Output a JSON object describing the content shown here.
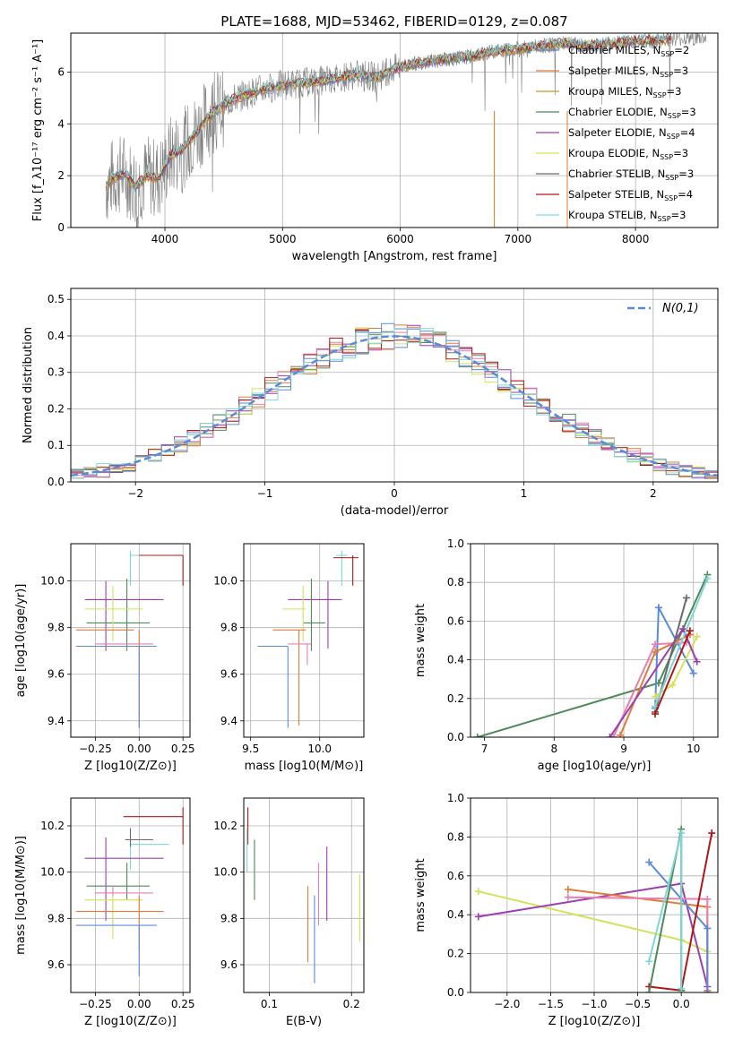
{
  "figure_title": "PLATE=1688, MJD=53462, FIBERID=0129, z=0.087",
  "colors": {
    "chabrier_miles": "#5b8bd8",
    "salpeter_miles": "#e07b39",
    "kroupa_miles": "#cf8f2c",
    "chabrier_elodie": "#4e8a5a",
    "salpeter_elodie": "#9b3fb0",
    "kroupa_elodie": "#d2e35a",
    "chabrier_stelib": "#6a6a6a",
    "salpeter_stelib": "#b01818",
    "kroupa_stelib": "#7fd6d6",
    "pink": "#e77fb0",
    "data_gray": "#7f7f7f"
  },
  "chart_data": [
    {
      "id": "spectrum",
      "type": "line",
      "xlabel": "wavelength [Angstrom, rest frame]",
      "ylabel": "Flux [f_λ10⁻¹⁷ erg cm⁻² s⁻¹ A⁻¹]",
      "xlim": [
        3200,
        8700
      ],
      "ylim": [
        0,
        7.5
      ],
      "xticks": [
        4000,
        5000,
        6000,
        7000,
        8000
      ],
      "yticks": [
        0,
        2,
        4,
        6
      ],
      "legend": [
        "Chabrier MILES, N_SSP=2",
        "Salpeter MILES, N_SSP=3",
        "Kroupa MILES, N_SSP=3",
        "Chabrier ELODIE, N_SSP=3",
        "Salpeter ELODIE, N_SSP=4",
        "Kroupa ELODIE, N_SSP=3",
        "Chabrier STELIB, N_SSP=3",
        "Salpeter STELIB, N_SSP=4",
        "Kroupa STELIB, N_SSP=3"
      ],
      "legend_keys": [
        "chabrier_miles",
        "salpeter_miles",
        "kroupa_miles",
        "chabrier_elodie",
        "salpeter_elodie",
        "kroupa_elodie",
        "chabrier_stelib",
        "salpeter_stelib",
        "kroupa_stelib"
      ],
      "legend_position": "right",
      "model_continuum": [
        [
          3500,
          1.6
        ],
        [
          3550,
          1.9
        ],
        [
          3650,
          2.1
        ],
        [
          3750,
          1.6
        ],
        [
          3850,
          2.0
        ],
        [
          3950,
          1.9
        ],
        [
          4050,
          2.8
        ],
        [
          4150,
          3.0
        ],
        [
          4250,
          3.6
        ],
        [
          4400,
          4.4
        ],
        [
          4600,
          5.0
        ],
        [
          4800,
          5.3
        ],
        [
          5000,
          5.5
        ],
        [
          5200,
          5.6
        ],
        [
          5400,
          5.7
        ],
        [
          5600,
          5.9
        ],
        [
          5800,
          5.8
        ],
        [
          6000,
          6.2
        ],
        [
          6200,
          6.4
        ],
        [
          6400,
          6.5
        ],
        [
          6600,
          6.6
        ],
        [
          6800,
          6.8
        ],
        [
          7000,
          6.9
        ],
        [
          7200,
          7.0
        ],
        [
          7400,
          7.1
        ],
        [
          7600,
          7.0
        ],
        [
          7800,
          7.1
        ],
        [
          8000,
          7.2
        ],
        [
          8200,
          7.2
        ],
        [
          8300,
          7.3
        ]
      ]
    },
    {
      "id": "residuals",
      "type": "step-histogram",
      "xlabel": "(data-model)/error",
      "ylabel": "Normed distribution",
      "xlim": [
        -2.5,
        2.5
      ],
      "ylim": [
        0,
        0.53
      ],
      "xticks": [
        -2,
        -1,
        0,
        1,
        2
      ],
      "yticks": [
        0.0,
        0.1,
        0.2,
        0.3,
        0.4,
        0.5
      ],
      "gaussian_label": "N(0,1)",
      "gaussian_curve": [
        [
          -2.5,
          0.018
        ],
        [
          -2.0,
          0.054
        ],
        [
          -1.5,
          0.13
        ],
        [
          -1.0,
          0.242
        ],
        [
          -0.5,
          0.352
        ],
        [
          0.0,
          0.399
        ],
        [
          0.5,
          0.352
        ],
        [
          1.0,
          0.242
        ],
        [
          1.5,
          0.13
        ],
        [
          2.0,
          0.054
        ],
        [
          2.5,
          0.018
        ]
      ],
      "legend_position": "upper right"
    },
    {
      "id": "z_age",
      "type": "errorbar",
      "xlabel": "Z [log10(Z/Z⊙)]",
      "ylabel": "age  [log10(age/yr)]",
      "xlim": [
        -0.39,
        0.29
      ],
      "ylim": [
        9.33,
        10.16
      ],
      "xticks": [
        -0.25,
        0.0,
        0.25
      ],
      "yticks": [
        9.4,
        9.6,
        9.8,
        10.0
      ],
      "points": [
        {
          "k": "kroupa_stelib",
          "x": -0.05,
          "y": 10.11,
          "xl": -0.05,
          "xh": 0.22,
          "yl": 9.98,
          "yh": 10.13
        },
        {
          "k": "salpeter_stelib",
          "x": 0.25,
          "y": 10.11,
          "xl": 0.0,
          "xh": 0.25,
          "yl": 9.98,
          "yh": 10.11
        },
        {
          "k": "salpeter_elodie",
          "x": -0.19,
          "y": 9.92,
          "xl": -0.31,
          "xh": 0.14,
          "yl": 9.7,
          "yh": 10.0
        },
        {
          "k": "chabrier_elodie",
          "x": -0.07,
          "y": 9.82,
          "xl": -0.3,
          "xh": 0.06,
          "yl": 9.7,
          "yh": 10.01
        },
        {
          "k": "kroupa_elodie",
          "x": -0.15,
          "y": 9.88,
          "xl": -0.31,
          "xh": 0.02,
          "yl": 9.74,
          "yh": 9.98
        },
        {
          "k": "salpeter_miles",
          "x": 0.0,
          "y": 9.79,
          "xl": -0.36,
          "xh": -0.03,
          "yl": 9.37,
          "yh": 9.79
        },
        {
          "k": "pink",
          "x": -0.02,
          "y": 9.73,
          "xl": -0.25,
          "xh": 0.08,
          "yl": 9.73,
          "yh": 9.73
        },
        {
          "k": "chabrier_miles",
          "x": 0.0,
          "y": 9.72,
          "xl": -0.36,
          "xh": 0.1,
          "yl": 9.37,
          "yh": 9.72
        }
      ]
    },
    {
      "id": "mass_age",
      "type": "errorbar",
      "xlabel": "mass [log10(M/M⊙)]",
      "ylabel": "",
      "xlim": [
        9.45,
        10.32
      ],
      "ylim": [
        9.33,
        10.16
      ],
      "xticks": [
        9.5,
        10.0
      ],
      "yticks": [
        9.4,
        9.6,
        9.8,
        10.0
      ],
      "points": [
        {
          "k": "kroupa_stelib",
          "x": 10.16,
          "y": 10.11,
          "xl": 10.12,
          "xh": 10.2,
          "yl": 9.98,
          "yh": 10.13
        },
        {
          "k": "salpeter_stelib",
          "x": 10.24,
          "y": 10.1,
          "xl": 10.1,
          "xh": 10.28,
          "yl": 9.98,
          "yh": 10.11
        },
        {
          "k": "salpeter_elodie",
          "x": 10.06,
          "y": 9.92,
          "xl": 9.77,
          "xh": 10.16,
          "yl": 9.71,
          "yh": 10.0
        },
        {
          "k": "chabrier_elodie",
          "x": 9.94,
          "y": 9.82,
          "xl": 9.88,
          "xh": 10.04,
          "yl": 9.7,
          "yh": 10.01
        },
        {
          "k": "kroupa_elodie",
          "x": 9.88,
          "y": 9.88,
          "xl": 9.73,
          "xh": 9.9,
          "yl": 9.74,
          "yh": 9.98
        },
        {
          "k": "salpeter_miles",
          "x": 9.85,
          "y": 9.79,
          "xl": 9.66,
          "xh": 9.9,
          "yl": 9.38,
          "yh": 9.79
        },
        {
          "k": "pink",
          "x": 9.91,
          "y": 9.73,
          "xl": 9.77,
          "xh": 9.94,
          "yl": 9.64,
          "yh": 9.73
        },
        {
          "k": "chabrier_miles",
          "x": 9.77,
          "y": 9.72,
          "xl": 9.55,
          "xh": 9.77,
          "yl": 9.37,
          "yh": 9.72
        }
      ]
    },
    {
      "id": "age_weight",
      "type": "line",
      "xlabel": "age  [log10(age/yr)]",
      "ylabel": "mass weight",
      "xlim": [
        6.8,
        10.35
      ],
      "ylim": [
        0,
        1
      ],
      "xticks": [
        7,
        8,
        9,
        10
      ],
      "yticks": [
        0.0,
        0.2,
        0.4,
        0.6,
        0.8,
        1.0
      ],
      "series": [
        {
          "k": "chabrier_elodie",
          "x": [
            6.9,
            9.5,
            10.2
          ],
          "y": [
            0.0,
            0.28,
            0.84
          ]
        },
        {
          "k": "chabrier_miles",
          "x": [
            9.45,
            9.5,
            10.0
          ],
          "y": [
            0.15,
            0.67,
            0.33
          ]
        },
        {
          "k": "salpeter_miles",
          "x": [
            8.95,
            9.45,
            9.95
          ],
          "y": [
            0.01,
            0.44,
            0.53
          ]
        },
        {
          "k": "pink",
          "x": [
            8.85,
            9.45,
            9.9
          ],
          "y": [
            0.0,
            0.48,
            0.49
          ]
        },
        {
          "k": "kroupa_elodie",
          "x": [
            9.45,
            9.7,
            10.05
          ],
          "y": [
            0.21,
            0.27,
            0.52
          ]
        },
        {
          "k": "salpeter_elodie",
          "x": [
            8.8,
            9.85,
            10.05
          ],
          "y": [
            0.0,
            0.56,
            0.39
          ]
        },
        {
          "k": "chabrier_stelib",
          "x": [
            9.45,
            9.9
          ],
          "y": [
            0.13,
            0.72
          ]
        },
        {
          "k": "kroupa_stelib",
          "x": [
            9.45,
            10.2
          ],
          "y": [
            0.16,
            0.82
          ]
        },
        {
          "k": "salpeter_stelib",
          "x": [
            9.45,
            9.95
          ],
          "y": [
            0.12,
            0.55
          ]
        }
      ]
    },
    {
      "id": "z_mass",
      "type": "errorbar",
      "xlabel": "Z [log10(Z/Z⊙)]",
      "ylabel": "mass [log10(M/M⊙)]",
      "xlim": [
        -0.39,
        0.29
      ],
      "ylim": [
        9.48,
        10.32
      ],
      "xticks": [
        -0.25,
        0.0,
        0.25
      ],
      "yticks": [
        9.6,
        9.8,
        10.0,
        10.2
      ],
      "points": [
        {
          "k": "salpeter_stelib",
          "x": 0.25,
          "y": 10.24,
          "xl": -0.09,
          "xh": 0.25,
          "yl": 10.12,
          "yh": 10.28
        },
        {
          "k": "kroupa_stelib",
          "x": -0.05,
          "y": 10.12,
          "xl": -0.05,
          "xh": 0.17,
          "yl": 10.01,
          "yh": 10.19
        },
        {
          "k": "chabrier_stelib",
          "x": -0.05,
          "y": 10.14,
          "xl": -0.08,
          "xh": 0.08,
          "yl": 10.11,
          "yh": 10.19
        },
        {
          "k": "salpeter_elodie",
          "x": -0.19,
          "y": 10.06,
          "xl": -0.31,
          "xh": 0.14,
          "yl": 9.79,
          "yh": 10.15
        },
        {
          "k": "chabrier_elodie",
          "x": -0.07,
          "y": 9.94,
          "xl": -0.3,
          "xh": 0.06,
          "yl": 9.88,
          "yh": 10.04
        },
        {
          "k": "pink",
          "x": -0.15,
          "y": 9.91,
          "xl": -0.25,
          "xh": 0.08,
          "yl": 9.77,
          "yh": 9.94
        },
        {
          "k": "kroupa_elodie",
          "x": -0.15,
          "y": 9.88,
          "xl": -0.31,
          "xh": 0.02,
          "yl": 9.71,
          "yh": 9.9
        },
        {
          "k": "salpeter_miles",
          "x": 0.0,
          "y": 9.83,
          "xl": -0.36,
          "xh": 0.14,
          "yl": 9.66,
          "yh": 9.9
        },
        {
          "k": "chabrier_miles",
          "x": 0.0,
          "y": 9.77,
          "xl": -0.36,
          "xh": 0.1,
          "yl": 9.55,
          "yh": 9.77
        }
      ]
    },
    {
      "id": "ebv_mass",
      "type": "errorbar",
      "xlabel": "E(B-V)",
      "ylabel": "",
      "xlim": [
        0.069,
        0.215
      ],
      "ylim": [
        9.48,
        10.32
      ],
      "xticks": [
        0.1,
        0.2
      ],
      "yticks": [
        9.6,
        9.8,
        10.0,
        10.2
      ],
      "points": [
        {
          "k": "salpeter_stelib",
          "x": 0.074,
          "y": 10.2,
          "xl": 0.074,
          "xh": 0.074,
          "yl": 10.12,
          "yh": 10.28
        },
        {
          "k": "kroupa_stelib",
          "x": 0.073,
          "y": 10.1,
          "xl": 0.073,
          "xh": 0.073,
          "yl": 10.0,
          "yh": 10.19
        },
        {
          "k": "chabrier_elodie",
          "x": 0.082,
          "y": 10.0,
          "xl": 0.082,
          "xh": 0.082,
          "yl": 9.88,
          "yh": 10.14
        },
        {
          "k": "salpeter_miles",
          "x": 0.147,
          "y": 9.8,
          "xl": 0.147,
          "xh": 0.147,
          "yl": 9.61,
          "yh": 9.94
        },
        {
          "k": "pink",
          "x": 0.16,
          "y": 9.9,
          "xl": 0.16,
          "xh": 0.16,
          "yl": 9.77,
          "yh": 10.04
        },
        {
          "k": "chabrier_miles",
          "x": 0.155,
          "y": 9.7,
          "xl": 0.155,
          "xh": 0.155,
          "yl": 9.52,
          "yh": 9.9
        },
        {
          "k": "salpeter_elodie",
          "x": 0.17,
          "y": 9.95,
          "xl": 0.17,
          "xh": 0.17,
          "yl": 9.79,
          "yh": 10.11
        },
        {
          "k": "kroupa_elodie",
          "x": 0.21,
          "y": 9.85,
          "xl": 0.21,
          "xh": 0.21,
          "yl": 9.7,
          "yh": 9.99
        }
      ]
    },
    {
      "id": "z_weight",
      "type": "line",
      "xlabel": "Z [log10(Z/Z⊙)]",
      "ylabel": "mass weight",
      "xlim": [
        -2.42,
        0.42
      ],
      "ylim": [
        0,
        1
      ],
      "xticks": [
        -2.0,
        -1.5,
        -1.0,
        -0.5,
        0.0
      ],
      "yticks": [
        0.0,
        0.2,
        0.4,
        0.6,
        0.8,
        1.0
      ],
      "series": [
        {
          "k": "kroupa_elodie",
          "x": [
            -2.33,
            0.0,
            0.3
          ],
          "y": [
            0.52,
            0.27,
            0.21
          ]
        },
        {
          "k": "salpeter_elodie",
          "x": [
            -2.33,
            0.0,
            0.3
          ],
          "y": [
            0.39,
            0.56,
            0.03
          ]
        },
        {
          "k": "salpeter_miles",
          "x": [
            -1.3,
            0.3,
            0.3
          ],
          "y": [
            0.53,
            0.44,
            0.01
          ]
        },
        {
          "k": "pink",
          "x": [
            -1.3,
            0.3,
            0.3
          ],
          "y": [
            0.49,
            0.48,
            0.0
          ]
        },
        {
          "k": "chabrier_miles",
          "x": [
            -0.37,
            0.3,
            0.3
          ],
          "y": [
            0.67,
            0.33,
            0.0
          ]
        },
        {
          "k": "salpeter_stelib",
          "x": [
            -0.37,
            0.0,
            0.35
          ],
          "y": [
            0.03,
            0.01,
            0.82
          ]
        },
        {
          "k": "chabrier_elodie",
          "x": [
            -0.37,
            0.0,
            0.0
          ],
          "y": [
            0.0,
            0.84,
            0.01
          ]
        },
        {
          "k": "kroupa_stelib",
          "x": [
            -0.37,
            0.0,
            0.0
          ],
          "y": [
            0.16,
            0.82,
            0.02
          ]
        }
      ]
    }
  ]
}
